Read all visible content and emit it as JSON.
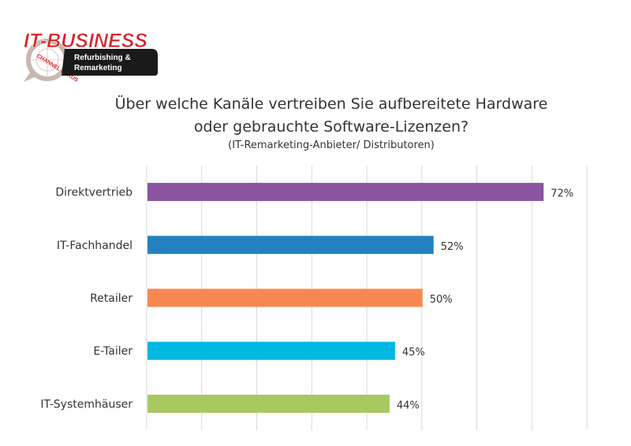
{
  "logo": {
    "brand": "IT-BUSINESS",
    "ring_text": "CHANNEL FOKUS",
    "tag_line1": "Refurbishing &",
    "tag_line2": "Remarketing",
    "colors": {
      "brand_red": "#d8232a",
      "tag_bg": "#1a1a1a"
    }
  },
  "chart_data": {
    "type": "bar",
    "orientation": "horizontal",
    "title_line1": "Über welche Kanäle vertreiben Sie aufbereitete Hardware",
    "title_line2": "oder gebrauchte Software-Lizenzen?",
    "subtitle": "(IT-Remarketing-Anbieter/ Distributoren)",
    "categories": [
      "Direktvertrieb",
      "IT-Fachhandel",
      "Retailer",
      "E-Tailer",
      "IT-Systemhäuser"
    ],
    "values": [
      72,
      52,
      50,
      45,
      44
    ],
    "value_labels": [
      "72%",
      "52%",
      "50%",
      "45%",
      "44%"
    ],
    "colors": [
      "#8a54a0",
      "#2480c0",
      "#f88850",
      "#00b8e0",
      "#a8c860"
    ],
    "xlim": [
      0,
      80
    ],
    "grid": true,
    "grid_color": "#d9d9d9"
  }
}
